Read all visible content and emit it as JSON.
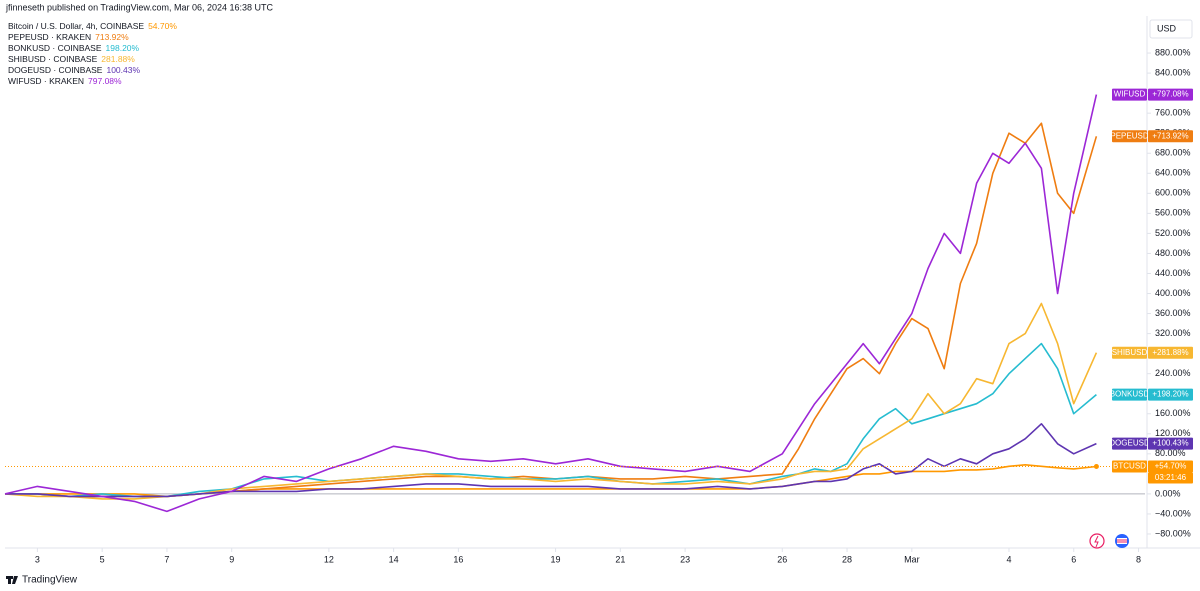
{
  "header": "jfinneseth published on TradingView.com, Mar 06, 2024 16:38 UTC",
  "currency": "USD",
  "brand": "TradingView",
  "chart_data": {
    "type": "line",
    "x": [
      2,
      3,
      4,
      5,
      6,
      7,
      8,
      9,
      10,
      11,
      12,
      13,
      14,
      15,
      16,
      17,
      18,
      19,
      20,
      21,
      22,
      23,
      24,
      25,
      26,
      26.5,
      27,
      27.5,
      28,
      28.5,
      29,
      29.5,
      30,
      30.5,
      31,
      31.5,
      32,
      32.5,
      33,
      33.5,
      34,
      34.5,
      35,
      35.7
    ],
    "xlim": [
      2,
      37.2
    ],
    "xticks": [
      3,
      5,
      7,
      9,
      12,
      14,
      16,
      19,
      21,
      23,
      26,
      28,
      {
        "value": 30,
        "label": "Mar"
      },
      {
        "value": 33,
        "label": "4"
      },
      {
        "value": 35,
        "label": "6"
      },
      {
        "value": 37,
        "label": "8"
      }
    ],
    "ylim": [
      -108,
      950
    ],
    "yticks": [
      {
        "value": 880,
        "label": "880.00%"
      },
      {
        "value": 840,
        "label": "840.00%"
      },
      {
        "value": 800,
        "label": "800.00%"
      },
      {
        "value": 760,
        "label": "760.00%"
      },
      {
        "value": 720,
        "label": "720.00%"
      },
      {
        "value": 680,
        "label": "680.00%"
      },
      {
        "value": 640,
        "label": "640.00%"
      },
      {
        "value": 600,
        "label": "600.00%"
      },
      {
        "value": 560,
        "label": "560.00%"
      },
      {
        "value": 520,
        "label": "520.00%"
      },
      {
        "value": 480,
        "label": "480.00%"
      },
      {
        "value": 440,
        "label": "440.00%"
      },
      {
        "value": 400,
        "label": "400.00%"
      },
      {
        "value": 360,
        "label": "360.00%"
      },
      {
        "value": 320,
        "label": "320.00%"
      },
      {
        "value": 240,
        "label": "240.00%"
      },
      {
        "value": 160,
        "label": "160.00%"
      },
      {
        "value": 120,
        "label": "120.00%"
      },
      {
        "value": 80,
        "label": "80.00%"
      },
      {
        "value": 0,
        "label": "0.00%"
      },
      {
        "value": -40,
        "label": "−40.00%"
      },
      {
        "value": -80,
        "label": "−80.00%"
      }
    ],
    "grid": false,
    "series": [
      {
        "name": "Bitcoin / U.S. Dollar, 4h, COINBASE",
        "legend_value": "54.70%",
        "tag": "BTCUSD",
        "tag_value": "+54.70%",
        "countdown": "03:21:46",
        "color": "#ff9800",
        "values": [
          0,
          0,
          0,
          0,
          0,
          -5,
          0,
          5,
          10,
          10,
          10,
          10,
          10,
          10,
          10,
          10,
          10,
          10,
          10,
          10,
          10,
          10,
          10,
          10,
          15,
          20,
          25,
          30,
          35,
          40,
          40,
          45,
          45,
          45,
          45,
          48,
          48,
          50,
          55,
          58,
          55,
          52,
          50,
          54.7
        ]
      },
      {
        "name": "PEPEUSD · KRAKEN",
        "legend_value": "713.92%",
        "tag": "PEPEUSD",
        "tag_value": "+713.92%",
        "color": "#ef7d11",
        "values": [
          0,
          0,
          -5,
          -5,
          -5,
          -5,
          0,
          5,
          10,
          15,
          20,
          25,
          30,
          35,
          35,
          30,
          35,
          30,
          35,
          30,
          30,
          35,
          30,
          35,
          40,
          90,
          150,
          200,
          250,
          270,
          240,
          300,
          350,
          330,
          250,
          420,
          500,
          640,
          720,
          700,
          740,
          600,
          560,
          713.92
        ]
      },
      {
        "name": "BONKUSD · COINBASE",
        "legend_value": "198.20%",
        "tag": "BONKUSD",
        "tag_value": "+198.20%",
        "color": "#26bcd0",
        "values": [
          0,
          0,
          -5,
          0,
          -5,
          -5,
          5,
          10,
          30,
          35,
          25,
          30,
          35,
          40,
          40,
          35,
          30,
          30,
          35,
          25,
          20,
          25,
          30,
          20,
          35,
          40,
          50,
          45,
          60,
          110,
          150,
          170,
          140,
          150,
          160,
          170,
          180,
          200,
          240,
          270,
          300,
          250,
          160,
          198.2
        ]
      },
      {
        "name": "SHIBUSD · COINBASE",
        "legend_value": "281.88%",
        "tag": "SHIBUSD",
        "tag_value": "+281.88%",
        "color": "#f7b731",
        "values": [
          0,
          -5,
          -5,
          -10,
          -10,
          -5,
          0,
          10,
          15,
          20,
          25,
          30,
          35,
          40,
          35,
          30,
          30,
          25,
          30,
          25,
          20,
          20,
          25,
          20,
          30,
          40,
          45,
          45,
          50,
          90,
          110,
          130,
          150,
          200,
          160,
          180,
          230,
          220,
          300,
          320,
          380,
          300,
          180,
          281.88
        ]
      },
      {
        "name": "DOGEUSD · COINBASE",
        "legend_value": "100.43%",
        "tag": "DOGEUSD",
        "tag_value": "+100.43%",
        "color": "#5e35b1",
        "values": [
          0,
          0,
          -5,
          -5,
          -5,
          -5,
          0,
          5,
          5,
          5,
          10,
          10,
          15,
          20,
          20,
          15,
          15,
          15,
          15,
          10,
          10,
          10,
          15,
          10,
          15,
          20,
          25,
          25,
          30,
          50,
          60,
          40,
          45,
          70,
          55,
          70,
          60,
          80,
          90,
          110,
          140,
          100,
          80,
          100.43
        ]
      },
      {
        "name": "WIFUSD · KRAKEN",
        "legend_value": "797.08%",
        "tag": "WIFUSD",
        "tag_value": "+797.08%",
        "color": "#9c27d6",
        "values": [
          0,
          15,
          5,
          -5,
          -15,
          -35,
          -10,
          5,
          35,
          25,
          50,
          70,
          95,
          85,
          70,
          65,
          70,
          60,
          70,
          55,
          50,
          45,
          55,
          45,
          80,
          130,
          180,
          220,
          260,
          300,
          260,
          310,
          360,
          450,
          520,
          480,
          620,
          680,
          660,
          700,
          650,
          400,
          600,
          797.08
        ]
      }
    ]
  }
}
